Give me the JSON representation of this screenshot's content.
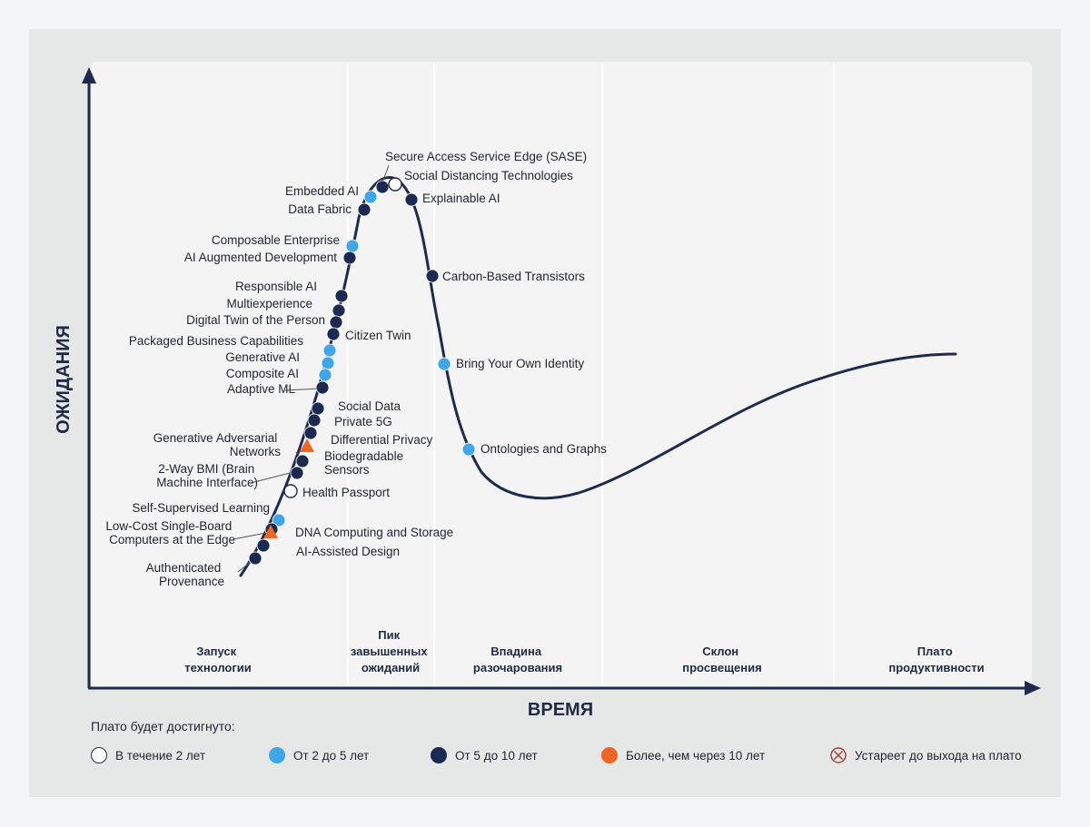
{
  "axes": {
    "y_title": "ОЖИДАНИЯ",
    "x_title": "ВРЕМЯ"
  },
  "phases": [
    {
      "lines": [
        "Запуск",
        "технологии"
      ]
    },
    {
      "lines": [
        "Пик",
        "завышенных",
        "ожиданий"
      ]
    },
    {
      "lines": [
        "Впадина",
        "разочарования"
      ]
    },
    {
      "lines": [
        "Склон",
        "просвещения"
      ]
    },
    {
      "lines": [
        "Плато",
        "продуктивности"
      ]
    }
  ],
  "colors": {
    "curve": "#1f2a4e",
    "within_2_years": "#ffffff",
    "2_to_5_years": "#3fa7e8",
    "5_to_10_years": "#1b2a52",
    "more_than_10_years": "#f06424",
    "obsolete": "#a0453c"
  },
  "legend": {
    "title": "Плато будет достигнуто:",
    "items": [
      {
        "key": "within_2_years",
        "label": "В течение 2 лет"
      },
      {
        "key": "2_to_5_years",
        "label": "От 2 до 5 лет"
      },
      {
        "key": "5_to_10_years",
        "label": "От 5 до 10 лет"
      },
      {
        "key": "more_than_10_years",
        "label": "Более, чем через 10 лет"
      },
      {
        "key": "obsolete",
        "label": "Устареет до выхода на плато"
      }
    ]
  },
  "technologies": [
    {
      "name": "Secure Access Service Edge (SASE)",
      "category": "5_to_10_years"
    },
    {
      "name": "Social Distancing Technologies",
      "category": "within_2_years"
    },
    {
      "name": "Embedded AI",
      "category": "2_to_5_years"
    },
    {
      "name": "Explainable AI",
      "category": "5_to_10_years"
    },
    {
      "name": "Data Fabric",
      "category": "5_to_10_years"
    },
    {
      "name": "Composable Enterprise",
      "category": "2_to_5_years"
    },
    {
      "name": "AI Augmented Development",
      "category": "5_to_10_years"
    },
    {
      "name": "Carbon-Based Transistors",
      "category": "5_to_10_years"
    },
    {
      "name": "Responsible AI",
      "category": "5_to_10_years"
    },
    {
      "name": "Multiexperience",
      "category": "5_to_10_years"
    },
    {
      "name": "Digital Twin of the Person",
      "category": "5_to_10_years"
    },
    {
      "name": "Citizen Twin",
      "category": "5_to_10_years"
    },
    {
      "name": "Packaged Business Capabilities",
      "category": "2_to_5_years"
    },
    {
      "name": "Generative AI",
      "category": "2_to_5_years"
    },
    {
      "name": "Bring Your Own Identity",
      "category": "2_to_5_years"
    },
    {
      "name": "Composite AI",
      "category": "2_to_5_years"
    },
    {
      "name": "Adaptive ML",
      "category": "5_to_10_years"
    },
    {
      "name": "Social Data",
      "category": "5_to_10_years"
    },
    {
      "name": "Private 5G",
      "category": "5_to_10_years"
    },
    {
      "name": "Differential Privacy",
      "category": "5_to_10_years"
    },
    {
      "name": "Generative Adversarial Networks",
      "category": "5_to_10_years"
    },
    {
      "name": "Biodegradable Sensors",
      "category": "more_than_10_years"
    },
    {
      "name": "Ontologies and Graphs",
      "category": "2_to_5_years"
    },
    {
      "name": "2-Way BMI (Brain Machine Interface)",
      "category": "5_to_10_years"
    },
    {
      "name": "Health Passport",
      "category": "within_2_years"
    },
    {
      "name": "Self-Supervised Learning",
      "category": "2_to_5_years"
    },
    {
      "name": "Low-Cost Single-Board Computers at the Edge",
      "category": "5_to_10_years"
    },
    {
      "name": "DNA Computing and Storage",
      "category": "more_than_10_years"
    },
    {
      "name": "AI-Assisted Design",
      "category": "5_to_10_years"
    },
    {
      "name": "Authenticated Provenance",
      "category": "5_to_10_years"
    }
  ]
}
